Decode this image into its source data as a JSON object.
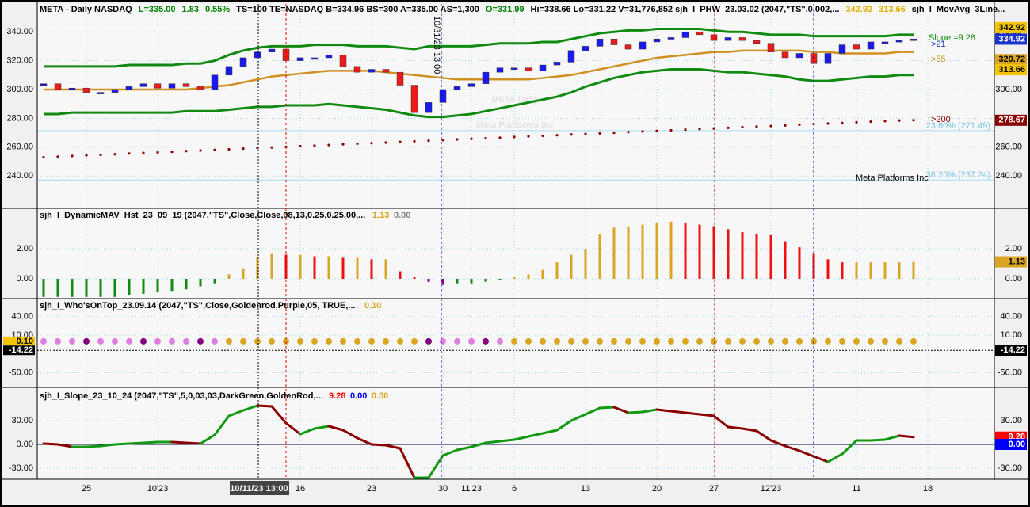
{
  "header": {
    "segments": [
      {
        "text": "META - Daily  NASDAQ",
        "color": "#000000"
      },
      {
        "text": "L=335.00",
        "color": "#008000"
      },
      {
        "text": "1.83",
        "color": "#008000"
      },
      {
        "text": "0.55%",
        "color": "#008000"
      },
      {
        "text": "TS=100  TE=NASDAQ  B=334.96  BS=300  A=335.00  AS=1,300",
        "color": "#000000"
      },
      {
        "text": "O=331.99",
        "color": "#008000"
      },
      {
        "text": "Hi=338.66  Lo=331.22  V=31,776,852  sjh_I_PHW_23.03.02 (2047,\"TS\",0.002,...",
        "color": "#000000"
      },
      {
        "text": "342.92",
        "color": "#e0b000"
      },
      {
        "text": "313.66",
        "color": "#e0b000"
      },
      {
        "text": "sjh_I_MovAvg_3Line...",
        "color": "#000000"
      }
    ]
  },
  "xticks": [
    {
      "value": 3,
      "label": "25"
    },
    {
      "value": 8,
      "label": "10'23"
    },
    {
      "value": 18,
      "label": "16"
    },
    {
      "value": 23,
      "label": "23"
    },
    {
      "value": 28,
      "label": "30"
    },
    {
      "value": 30,
      "label": "11'23"
    },
    {
      "value": 33,
      "label": "6"
    },
    {
      "value": 38,
      "label": "13"
    },
    {
      "value": 43,
      "label": "20"
    },
    {
      "value": 47,
      "label": "27"
    },
    {
      "value": 51,
      "label": "12'23"
    },
    {
      "value": 57,
      "label": "11"
    },
    {
      "value": 62,
      "label": "18"
    }
  ],
  "cursor_label": "10/11/23 13:00",
  "time_marker": "10/31/23 13:00",
  "price": {
    "yticks": [
      {
        "value": 340,
        "label": "340.00"
      },
      {
        "value": 320,
        "label": "320.00"
      },
      {
        "value": 300,
        "label": "300.00"
      },
      {
        "value": 280,
        "label": "280.00"
      },
      {
        "value": 260,
        "label": "260.00"
      },
      {
        "value": 240,
        "label": "240.00"
      }
    ],
    "closes": [
      304,
      300,
      301,
      298,
      298,
      300,
      302,
      304,
      301,
      304,
      302,
      300,
      310,
      316,
      322,
      326,
      328,
      320,
      322,
      322,
      324,
      316,
      312,
      314,
      312,
      303,
      284,
      291,
      300,
      302,
      304,
      312,
      315,
      315,
      313,
      317,
      319,
      327,
      330,
      335,
      331,
      328,
      333,
      335,
      336,
      340,
      338,
      334,
      336,
      334,
      332,
      326,
      322,
      325,
      318,
      325,
      331,
      328,
      333,
      333,
      334,
      335
    ],
    "upper_band": [
      316,
      316,
      316,
      316,
      316,
      316,
      317,
      317,
      317,
      317,
      318,
      318,
      320,
      324,
      327,
      329,
      330,
      330,
      330,
      331,
      331,
      331,
      330,
      330,
      330,
      329,
      328,
      330,
      330,
      330,
      330,
      331,
      332,
      332,
      332,
      333,
      333,
      335,
      337,
      339,
      340,
      341,
      341,
      342,
      342,
      342,
      342,
      341,
      340,
      340,
      339,
      338,
      338,
      338,
      337,
      337,
      337,
      337,
      337,
      337,
      338,
      338
    ],
    "lower_band": [
      283,
      283,
      284,
      284,
      284,
      284,
      284,
      284,
      284,
      284,
      285,
      285,
      285,
      286,
      287,
      288,
      288,
      289,
      289,
      289,
      290,
      289,
      288,
      287,
      286,
      284,
      282,
      281,
      281,
      282,
      283,
      285,
      287,
      289,
      291,
      293,
      295,
      298,
      302,
      305,
      308,
      310,
      312,
      313,
      314,
      314,
      314,
      313,
      312,
      312,
      311,
      310,
      309,
      307,
      306,
      306,
      307,
      308,
      309,
      309,
      310,
      310
    ],
    "ma_mid": [
      300,
      300,
      300,
      300,
      300,
      300,
      300,
      300,
      300,
      300,
      300,
      301,
      302,
      303,
      305,
      307,
      309,
      310,
      311,
      312,
      313,
      313,
      313,
      313,
      312,
      311,
      310,
      309,
      308,
      307,
      307,
      307,
      307,
      307,
      307,
      308,
      309,
      310,
      312,
      314,
      316,
      318,
      320,
      322,
      323,
      324,
      325,
      326,
      326,
      327,
      327,
      327,
      327,
      327,
      326,
      326,
      325,
      325,
      325,
      325,
      326,
      326
    ],
    "ma200": [
      253.0,
      253.4,
      253.9,
      254.3,
      254.7,
      255.1,
      255.6,
      256.0,
      256.4,
      256.8,
      257.3,
      257.7,
      258.1,
      258.5,
      259.0,
      259.4,
      259.8,
      260.2,
      260.7,
      261.1,
      261.5,
      262.0,
      262.4,
      262.8,
      263.2,
      263.7,
      264.1,
      264.5,
      264.9,
      265.4,
      265.8,
      266.2,
      266.6,
      267.1,
      267.5,
      267.9,
      268.3,
      268.8,
      269.2,
      269.6,
      270.0,
      270.5,
      270.9,
      271.3,
      271.7,
      272.2,
      272.6,
      273.0,
      273.4,
      273.9,
      274.3,
      274.7,
      275.1,
      275.6,
      276.0,
      276.4,
      276.8,
      277.3,
      277.7,
      278.1,
      278.5,
      278.7
    ],
    "fib": [
      {
        "value": 271.49,
        "label": "23.60% (271.49)"
      },
      {
        "value": 237.24,
        "label": "38.20% (237.24)"
      }
    ],
    "tags": [
      {
        "value": 342.92,
        "color": "#f5c400",
        "text_color": "#000000"
      },
      {
        "value": 334.92,
        "color": "#1a33cc",
        "text_color": "#ffffff"
      },
      {
        "value": 320.72,
        "color": "#daa520",
        "text_color": "#000000"
      },
      {
        "value": 313.66,
        "color": "#f5c400",
        "text_color": "#000000"
      },
      {
        "value": 278.67,
        "color": "#8b0000",
        "text_color": "#ffffff"
      }
    ],
    "notes": {
      "slope": "Slope =9.28",
      "ma21": ">21",
      "ma55": ">55",
      "ma200": ">200"
    },
    "watermark": "META Daily",
    "watermark_sub": "Meta Platforms Inc",
    "company": "Meta Platforms Inc"
  },
  "dynamic_mav": {
    "title": "sjh_I_DynamicMAV_Hst_23_09_19 (2047,\"TS\",Close,Close,08,13,0.25,0.25,00,...",
    "readouts": [
      {
        "value": 1.13,
        "color": "#daa520"
      },
      {
        "value": 0,
        "label": "0.00",
        "color": "#808080"
      }
    ],
    "yticks": [
      {
        "value": 2,
        "label": "2.00"
      },
      {
        "value": 0,
        "label": "0.00"
      }
    ],
    "values": [
      -1.2,
      -1.2,
      -1.2,
      -1.2,
      -1.2,
      -1.2,
      -1.1,
      -1.0,
      -0.9,
      -0.8,
      -0.7,
      -0.5,
      -0.3,
      0.3,
      0.7,
      1.4,
      1.7,
      1.6,
      1.6,
      1.5,
      1.5,
      1.4,
      1.4,
      1.3,
      1.3,
      0.5,
      0.1,
      -0.2,
      -0.4,
      -0.3,
      -0.3,
      -0.2,
      -0.1,
      0.1,
      0.3,
      0.6,
      1.1,
      1.6,
      2.0,
      3.0,
      3.4,
      3.5,
      3.6,
      3.7,
      3.8,
      3.7,
      3.6,
      3.5,
      3.3,
      3.1,
      3.0,
      2.9,
      2.5,
      2.1,
      1.7,
      1.3,
      1.1,
      1.1,
      1.1,
      1.1,
      1.1,
      1.13
    ],
    "tag": {
      "value": 1.13,
      "color": "#daa520",
      "text_color": "#000000"
    }
  },
  "whos_on_top": {
    "title": "sjh_I_Who'sOnTop_23.09.14 (2047,\"TS\",Close,Goldenrod,Purple,05,  TRUE,...",
    "readout": {
      "value": 0.1,
      "label": "0.10",
      "color": "#daa520"
    },
    "yticks": [
      {
        "value": 40,
        "label": "40.00"
      },
      {
        "value": 10,
        "label": "10.00"
      },
      {
        "value": -50,
        "label": "-50.00"
      }
    ],
    "level": {
      "value": 0.1,
      "label": "0.10"
    },
    "threshold": -14.22
  },
  "slope": {
    "title": "sjh_I_Slope_23_10_24 (2047,\"TS\",5,0,03,03,DarkGreen,GoldenRod,...",
    "readouts": [
      {
        "value": 9.28,
        "color": "#ff0000"
      },
      {
        "value": 0,
        "label": "0.00",
        "color": "#0000ff"
      },
      {
        "value": 0,
        "label": "0.00",
        "color": "#daa520"
      }
    ],
    "yticks": [
      {
        "value": 30,
        "label": "30.00"
      },
      {
        "value": 0,
        "label": "0.00"
      },
      {
        "value": -30,
        "label": "-30.00"
      }
    ],
    "values": [
      1,
      0,
      -3,
      -3,
      -2,
      0,
      1,
      2,
      3,
      3,
      2,
      1,
      12,
      36,
      43,
      49,
      48,
      27,
      13,
      20,
      23,
      18,
      8,
      0,
      -1,
      -5,
      -42,
      -42,
      -14,
      -7,
      -3,
      2,
      4,
      6,
      10,
      14,
      18,
      30,
      38,
      46,
      47,
      40,
      41,
      44,
      42,
      40,
      38,
      36,
      22,
      20,
      17,
      5,
      -2,
      -8,
      -15,
      -22,
      -12,
      5,
      5,
      6,
      11,
      9.28
    ],
    "tags": [
      {
        "value": 9.28,
        "color": "#ff0000",
        "text_color": "#ffffff"
      },
      {
        "value": 0,
        "label": "0.00",
        "color": "#0000ff",
        "text_color": "#ffffff"
      }
    ]
  }
}
